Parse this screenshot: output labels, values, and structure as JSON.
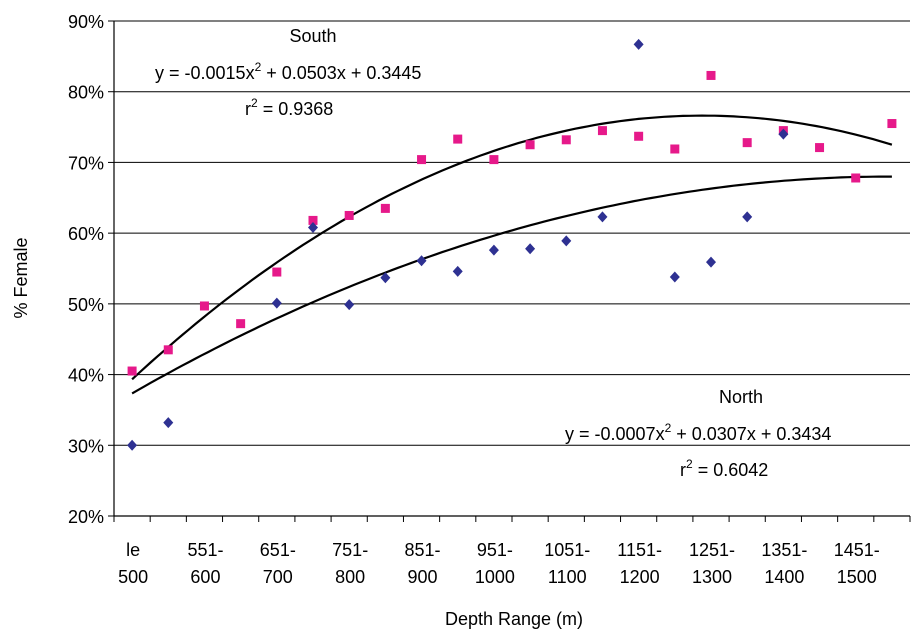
{
  "chart_data": {
    "type": "scatter",
    "title": "",
    "xlabel": "Depth Range (m)",
    "ylabel": "% Female",
    "ylim": [
      0.2,
      0.9
    ],
    "y_ticks": [
      0.2,
      0.3,
      0.4,
      0.5,
      0.6,
      0.7,
      0.8,
      0.9
    ],
    "y_tick_labels": [
      "20%",
      "30%",
      "40%",
      "50%",
      "60%",
      "70%",
      "80%",
      "90%"
    ],
    "x_tick_labels": [
      {
        "top": "le",
        "bottom": "500"
      },
      {
        "top": "551-",
        "bottom": "600"
      },
      {
        "top": "651-",
        "bottom": "700"
      },
      {
        "top": "751-",
        "bottom": "800"
      },
      {
        "top": "851-",
        "bottom": "900"
      },
      {
        "top": "951-",
        "bottom": "1000"
      },
      {
        "top": "1051-",
        "bottom": "1100"
      },
      {
        "top": "1151-",
        "bottom": "1200"
      },
      {
        "top": "1251-",
        "bottom": "1300"
      },
      {
        "top": "1351-",
        "bottom": "1400"
      },
      {
        "top": "1451-",
        "bottom": "1500"
      }
    ],
    "x_labeled_every": 2,
    "grid": "horizontal",
    "series": [
      {
        "marker": "square",
        "color": "#e6198a",
        "values": [
          0.405,
          0.435,
          0.497,
          0.472,
          0.545,
          0.618,
          0.625,
          0.635,
          0.704,
          0.733,
          0.704,
          0.725,
          0.732,
          0.745,
          0.737,
          0.719,
          0.823,
          0.728,
          0.745,
          0.721,
          0.678,
          0.755
        ],
        "trendline": {
          "type": "polynomial",
          "coefficients": [
            -0.0015,
            0.0503,
            0.3445
          ]
        }
      },
      {
        "marker": "diamond",
        "color": "#2e3192",
        "values": [
          0.3,
          0.332,
          null,
          null,
          0.501,
          0.608,
          0.499,
          0.537,
          0.561,
          0.546,
          0.576,
          0.578,
          0.589,
          0.623,
          0.867,
          0.538,
          0.559,
          0.623,
          0.74,
          null,
          null,
          null
        ],
        "trendline": {
          "type": "polynomial",
          "coefficients": [
            -0.0007,
            0.0307,
            0.3434
          ]
        }
      }
    ],
    "annotations": {
      "south": {
        "title": "South",
        "eq_a": "y = -0.0015x",
        "eq_b": " + 0.0503x + 0.3445",
        "r2_value": " = 0.9368"
      },
      "north": {
        "title": "North",
        "eq_a": "y = -0.0007x",
        "eq_b": " + 0.0307x + 0.3434",
        "r2_value": " = 0.6042"
      },
      "exponent": "2",
      "r_symbol": "r"
    }
  }
}
